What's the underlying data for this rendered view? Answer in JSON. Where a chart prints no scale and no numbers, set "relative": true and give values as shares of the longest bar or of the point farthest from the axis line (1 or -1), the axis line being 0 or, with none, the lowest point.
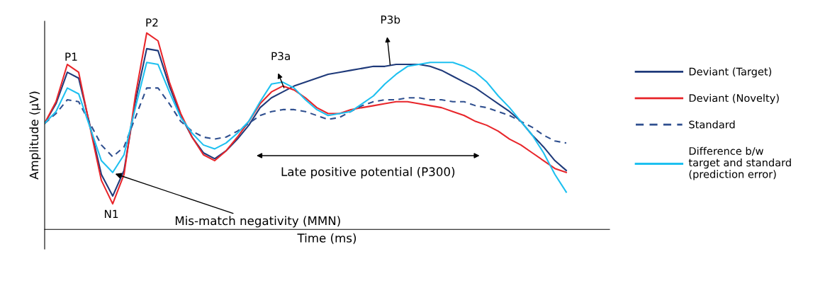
{
  "chart_data": {
    "type": "line",
    "relative": true,
    "xlabel": "Time (ms)",
    "ylabel": "Amplitude (µV)",
    "legend": "right",
    "categories": [
      null,
      null,
      null,
      null,
      null,
      null,
      null,
      null,
      null,
      null,
      null,
      null,
      null,
      null,
      null,
      null,
      null,
      null,
      null,
      null,
      null,
      null,
      null,
      null,
      null,
      null,
      null,
      null,
      null,
      null,
      null,
      null,
      null,
      null,
      null,
      null,
      null,
      null,
      null,
      null,
      null,
      null,
      null,
      null,
      null,
      null,
      null
    ],
    "series": [
      {
        "name": "Deviant (Target)",
        "color": "#1f3a7a",
        "line_style": "solid",
        "values": [
          0.54,
          0.64,
          0.8,
          0.77,
          0.53,
          0.28,
          0.17,
          0.3,
          0.65,
          0.92,
          0.91,
          0.73,
          0.58,
          0.47,
          0.39,
          0.36,
          0.4,
          0.46,
          0.53,
          0.62,
          0.67,
          0.7,
          0.73,
          0.75,
          0.77,
          0.79,
          0.8,
          0.81,
          0.82,
          0.83,
          0.83,
          0.84,
          0.84,
          0.84,
          0.83,
          0.81,
          0.78,
          0.75,
          0.72,
          0.68,
          0.64,
          0.6,
          0.55,
          0.48,
          0.42,
          0.35,
          0.3
        ]
      },
      {
        "name": "Deviant (Novelty)",
        "color": "#e8262b",
        "line_style": "solid",
        "values": [
          0.54,
          0.65,
          0.84,
          0.8,
          0.52,
          0.25,
          0.13,
          0.28,
          0.68,
          1.0,
          0.96,
          0.75,
          0.59,
          0.47,
          0.38,
          0.35,
          0.4,
          0.47,
          0.55,
          0.64,
          0.7,
          0.73,
          0.71,
          0.67,
          0.62,
          0.59,
          0.59,
          0.61,
          0.62,
          0.63,
          0.64,
          0.65,
          0.65,
          0.64,
          0.63,
          0.62,
          0.6,
          0.58,
          0.55,
          0.53,
          0.5,
          0.46,
          0.43,
          0.39,
          0.35,
          0.31,
          0.29
        ]
      },
      {
        "name": "Standard",
        "color": "#2f4f8f",
        "line_style": "dashed",
        "values": [
          0.54,
          0.59,
          0.66,
          0.65,
          0.54,
          0.43,
          0.37,
          0.42,
          0.57,
          0.72,
          0.72,
          0.64,
          0.55,
          0.5,
          0.47,
          0.46,
          0.47,
          0.5,
          0.54,
          0.58,
          0.6,
          0.61,
          0.61,
          0.6,
          0.58,
          0.56,
          0.57,
          0.6,
          0.63,
          0.65,
          0.66,
          0.66,
          0.67,
          0.67,
          0.66,
          0.66,
          0.65,
          0.65,
          0.63,
          0.62,
          0.6,
          0.58,
          0.55,
          0.52,
          0.48,
          0.45,
          0.44
        ]
      },
      {
        "name": "Difference b/w\ntarget and standard\n(prediction error)",
        "color": "#1ec0f0",
        "line_style": "solid",
        "values": [
          0.54,
          0.6,
          0.72,
          0.69,
          0.52,
          0.35,
          0.29,
          0.38,
          0.62,
          0.85,
          0.84,
          0.7,
          0.57,
          0.49,
          0.43,
          0.41,
          0.44,
          0.49,
          0.55,
          0.65,
          0.74,
          0.75,
          0.72,
          0.66,
          0.61,
          0.58,
          0.59,
          0.6,
          0.64,
          0.68,
          0.74,
          0.79,
          0.83,
          0.84,
          0.85,
          0.85,
          0.85,
          0.83,
          0.8,
          0.75,
          0.68,
          0.62,
          0.55,
          0.48,
          0.39,
          0.28,
          0.19
        ]
      }
    ],
    "annotations": [
      "P1",
      "N1",
      "P2",
      "P3a",
      "P3b",
      "Mis-match negativity (MMN)",
      "Late positive potential (P300)"
    ]
  }
}
